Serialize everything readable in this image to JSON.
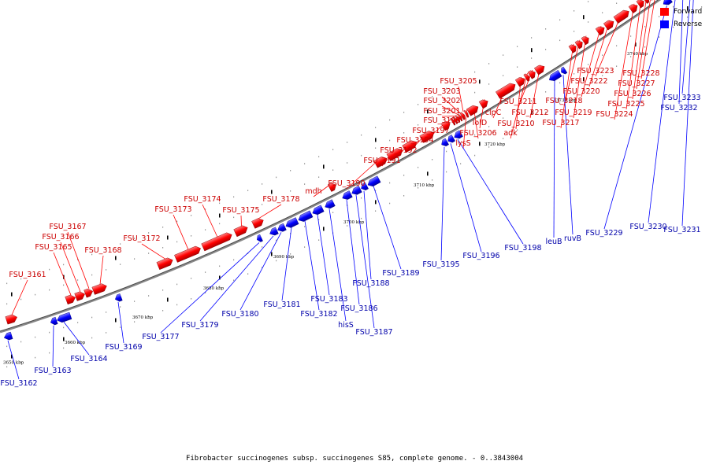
{
  "legend": {
    "forward": {
      "label": "Forward",
      "color": "#ff0000"
    },
    "reverse": {
      "label": "Reverse",
      "color": "#0000ff"
    }
  },
  "caption": "Fibrobacter succinogenes subsp. succinogenes S85, complete genome. - 0..3843004",
  "ticks": [
    "3650 kbp",
    "3660 kbp",
    "3670 kbp",
    "3680 kbp",
    "3690 kbp",
    "3700 kbp",
    "3710 kbp",
    "3720 kbp",
    "3730 kbp",
    "3740 kbp"
  ],
  "forward_genes": [
    "FSU_3161",
    "FSU_3165",
    "FSU_3166",
    "FSU_3167",
    "FSU_3168",
    "FSU_3172",
    "FSU_3173",
    "FSU_3174",
    "FSU_3175",
    "FSU_3178",
    "mdh",
    "FSU_3190",
    "FSU_3191",
    "FSU_3192",
    "FSU_3194",
    "FSU_3197",
    "FSU_3199",
    "FSU_3201",
    "FSU_3202",
    "FSU_3203",
    "FSU_3205",
    "lysS",
    "FSU_3206",
    "lolD",
    "clpC",
    "FSU_3210",
    "adk",
    "FSU_3211",
    "FSU_3212",
    "FSU_3217",
    "FSU_3218",
    "FSU_3219",
    "FSU_3220",
    "FSU_3222",
    "FSU_3223",
    "FSU_3224",
    "FSU_3225",
    "FSU_3226",
    "FSU_3227",
    "FSU_3228"
  ],
  "reverse_genes": [
    "FSU_3162",
    "FSU_3163",
    "FSU_3164",
    "FSU_3169",
    "FSU_3177",
    "FSU_3179",
    "FSU_3180",
    "FSU_3181",
    "FSU_3182",
    "FSU_3183",
    "hisS",
    "FSU_3186",
    "FSU_3187",
    "FSU_3188",
    "FSU_3189",
    "FSU_3195",
    "FSU_3196",
    "FSU_3198",
    "leuB",
    "ruvB",
    "FSU_3229",
    "FSU_3230",
    "FSU_3231",
    "FSU_3232",
    "FSU_3233"
  ]
}
